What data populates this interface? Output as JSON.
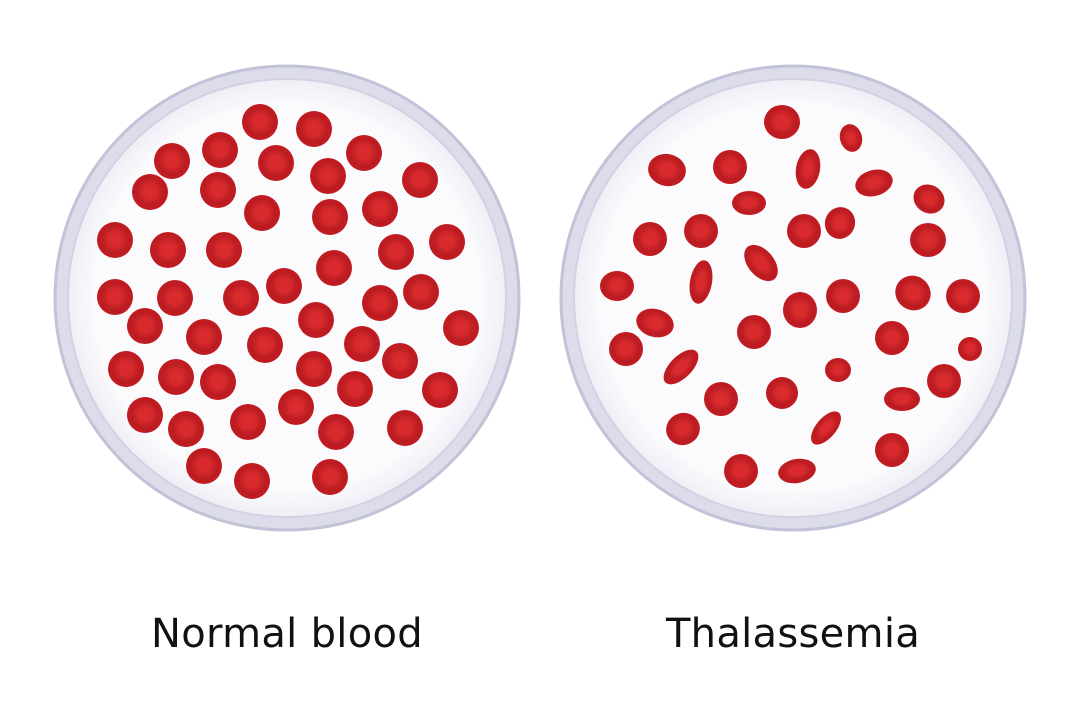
{
  "colors": {
    "background": "#ffffff",
    "dish_rim_outer": "#c9c9de",
    "dish_rim_inner": "#e4e4f1",
    "dish_fill": "#f7f7fb",
    "cell_dark": "#b81a1f",
    "cell_mid": "#d6252b",
    "cell_center": "#e4383b"
  },
  "panels": {
    "normal": {
      "label": "Normal blood",
      "cell_shape": "round biconcave disc"
    },
    "thalassemia": {
      "label": "Thalassemia",
      "cell_shape": "irregular, elongated and teardrop shapes"
    }
  }
}
